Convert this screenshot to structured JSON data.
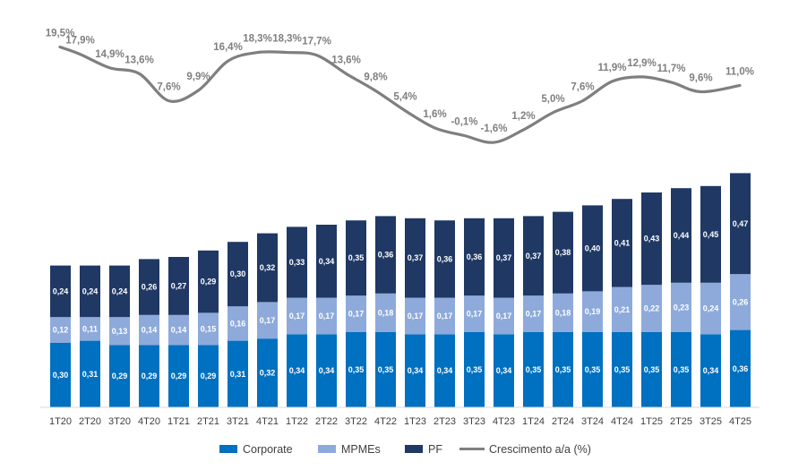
{
  "chart_data": {
    "type": "bar",
    "stacked": true,
    "categories": [
      "1T20",
      "2T20",
      "3T20",
      "4T20",
      "1T21",
      "2T21",
      "3T21",
      "4T21",
      "1T22",
      "2T22",
      "3T22",
      "4T22",
      "1T23",
      "2T23",
      "3T23",
      "4T23",
      "1T24",
      "2T24",
      "3T24",
      "4T24",
      "1T25",
      "2T25",
      "3T25",
      "4T25"
    ],
    "series": [
      {
        "name": "Corporate",
        "color": "#0070c0",
        "values": [
          0.3,
          0.31,
          0.29,
          0.29,
          0.29,
          0.29,
          0.31,
          0.32,
          0.34,
          0.34,
          0.35,
          0.35,
          0.34,
          0.34,
          0.35,
          0.34,
          0.35,
          0.35,
          0.35,
          0.35,
          0.35,
          0.35,
          0.34,
          0.36
        ],
        "labels": [
          "0,30",
          "0,31",
          "0,29",
          "0,29",
          "0,29",
          "0,29",
          "0,31",
          "0,32",
          "0,34",
          "0,34",
          "0,35",
          "0,35",
          "0,34",
          "0,34",
          "0,35",
          "0,34",
          "0,35",
          "0,35",
          "0,35",
          "0,35",
          "0,35",
          "0,35",
          "0,34",
          "0,36"
        ]
      },
      {
        "name": "MPMEs",
        "color": "#8eaadb",
        "values": [
          0.12,
          0.11,
          0.13,
          0.14,
          0.14,
          0.15,
          0.16,
          0.17,
          0.17,
          0.17,
          0.17,
          0.18,
          0.17,
          0.17,
          0.17,
          0.17,
          0.17,
          0.18,
          0.19,
          0.21,
          0.22,
          0.23,
          0.24,
          0.26
        ],
        "labels": [
          "0,12",
          "0,11",
          "0,13",
          "0,14",
          "0,14",
          "0,15",
          "0,16",
          "0,17",
          "0,17",
          "0,17",
          "0,17",
          "0,18",
          "0,17",
          "0,17",
          "0,17",
          "0,17",
          "0,17",
          "0,18",
          "0,19",
          "0,21",
          "0,22",
          "0,23",
          "0,24",
          "0,26"
        ]
      },
      {
        "name": "PF",
        "color": "#1f3864",
        "values": [
          0.24,
          0.24,
          0.24,
          0.26,
          0.27,
          0.29,
          0.3,
          0.32,
          0.33,
          0.34,
          0.35,
          0.36,
          0.37,
          0.36,
          0.36,
          0.37,
          0.37,
          0.38,
          0.4,
          0.41,
          0.43,
          0.44,
          0.45,
          0.47
        ],
        "labels": [
          "0,24",
          "0,24",
          "0,24",
          "0,26",
          "0,27",
          "0,29",
          "0,30",
          "0,32",
          "0,33",
          "0,34",
          "0,35",
          "0,36",
          "0,37",
          "0,36",
          "0,36",
          "0,37",
          "0,37",
          "0,38",
          "0,40",
          "0,41",
          "0,43",
          "0,44",
          "0,45",
          "0,47"
        ]
      }
    ],
    "line": {
      "name": "Crescimento a/a (%)",
      "color": "#7f7f7f",
      "values": [
        19.5,
        17.9,
        14.9,
        13.6,
        7.6,
        9.9,
        16.4,
        18.3,
        18.3,
        17.7,
        13.6,
        9.8,
        5.4,
        1.6,
        -0.1,
        -1.6,
        1.2,
        5.0,
        7.6,
        11.9,
        12.9,
        11.7,
        9.6,
        11.0
      ],
      "labels": [
        "19,5%",
        "17,9%",
        "14,9%",
        "13,6%",
        "7,6%",
        "9,9%",
        "16,4%",
        "18,3%",
        "18,3%",
        "17,7%",
        "13,6%",
        "9,8%",
        "5,4%",
        "1,6%",
        "-0,1%",
        "-1,6%",
        "1,2%",
        "5,0%",
        "7,6%",
        "11,9%",
        "12,9%",
        "11,7%",
        "9,6%",
        "11,0%"
      ]
    },
    "legend": [
      "Corporate",
      "MPMEs",
      "PF",
      "Crescimento a/a (%)"
    ],
    "legend_position": "bottom",
    "grid": false
  }
}
